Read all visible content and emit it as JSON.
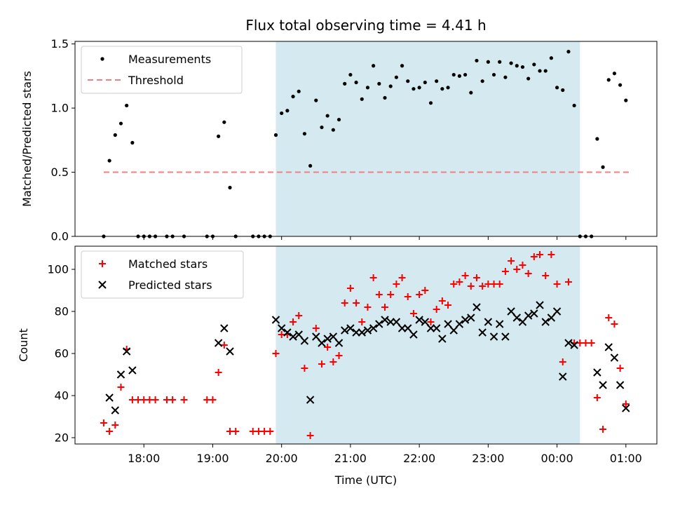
{
  "title": "Flux total observing time = 4.41 h",
  "colors": {
    "shade": "#d4eaf0",
    "measurement": "#000000",
    "threshold": "#f08080",
    "matched": "#ff0000",
    "predicted": "#000000"
  },
  "chart_data": [
    {
      "type": "scatter",
      "ylabel": "Matched/Predicted stars",
      "xlabel": "",
      "x_unit": "hours (UTC, continuing past midnight)",
      "xlim": [
        "17:00",
        "01:27"
      ],
      "ylim": [
        0,
        1.52
      ],
      "yticks": [
        "0.0",
        "0.5",
        "1.0",
        "1.5"
      ],
      "shaded_interval": [
        "19:55",
        "00:20"
      ],
      "legend": {
        "position": "upper-left",
        "entries": [
          "Measurements",
          "Threshold"
        ]
      },
      "series": [
        {
          "name": "Measurements",
          "marker": "dot",
          "points": [
            [
              "17:25",
              0
            ],
            [
              "17:30",
              0.59
            ],
            [
              "17:35",
              0.79
            ],
            [
              "17:40",
              0.88
            ],
            [
              "17:45",
              1.02
            ],
            [
              "17:50",
              0.73
            ],
            [
              "17:55",
              0
            ],
            [
              "18:00",
              0
            ],
            [
              "18:05",
              0
            ],
            [
              "18:10",
              0
            ],
            [
              "18:20",
              0
            ],
            [
              "18:25",
              0
            ],
            [
              "18:35",
              0
            ],
            [
              "18:55",
              0
            ],
            [
              "19:00",
              0
            ],
            [
              "19:05",
              0.78
            ],
            [
              "19:10",
              0.89
            ],
            [
              "19:15",
              0.38
            ],
            [
              "19:20",
              0
            ],
            [
              "19:35",
              0
            ],
            [
              "19:40",
              0
            ],
            [
              "19:45",
              0
            ],
            [
              "19:50",
              0
            ],
            [
              "19:55",
              0.79
            ],
            [
              "20:00",
              0.96
            ],
            [
              "20:05",
              0.98
            ],
            [
              "20:10",
              1.09
            ],
            [
              "20:15",
              1.13
            ],
            [
              "20:20",
              0.8
            ],
            [
              "20:25",
              0.55
            ],
            [
              "20:30",
              1.06
            ],
            [
              "20:35",
              0.85
            ],
            [
              "20:40",
              0.94
            ],
            [
              "20:45",
              0.83
            ],
            [
              "20:50",
              0.91
            ],
            [
              "20:55",
              1.19
            ],
            [
              "21:00",
              1.26
            ],
            [
              "21:05",
              1.2
            ],
            [
              "21:10",
              1.07
            ],
            [
              "21:15",
              1.16
            ],
            [
              "21:20",
              1.33
            ],
            [
              "21:25",
              1.19
            ],
            [
              "21:30",
              1.08
            ],
            [
              "21:35",
              1.17
            ],
            [
              "21:40",
              1.24
            ],
            [
              "21:45",
              1.33
            ],
            [
              "21:50",
              1.21
            ],
            [
              "21:55",
              1.15
            ],
            [
              "22:00",
              1.16
            ],
            [
              "22:05",
              1.2
            ],
            [
              "22:10",
              1.04
            ],
            [
              "22:15",
              1.21
            ],
            [
              "22:20",
              1.15
            ],
            [
              "22:25",
              1.16
            ],
            [
              "22:30",
              1.26
            ],
            [
              "22:35",
              1.25
            ],
            [
              "22:40",
              1.26
            ],
            [
              "22:45",
              1.12
            ],
            [
              "22:50",
              1.37
            ],
            [
              "22:55",
              1.21
            ],
            [
              "23:00",
              1.36
            ],
            [
              "23:05",
              1.26
            ],
            [
              "23:10",
              1.36
            ],
            [
              "23:15",
              1.24
            ],
            [
              "23:20",
              1.35
            ],
            [
              "23:25",
              1.33
            ],
            [
              "23:30",
              1.32
            ],
            [
              "23:35",
              1.23
            ],
            [
              "23:40",
              1.34
            ],
            [
              "23:45",
              1.29
            ],
            [
              "23:50",
              1.29
            ],
            [
              "23:55",
              1.39
            ],
            [
              "00:00",
              1.16
            ],
            [
              "00:05",
              1.14
            ],
            [
              "00:10",
              1.44
            ],
            [
              "00:15",
              1.02
            ],
            [
              "00:20",
              0
            ],
            [
              "00:25",
              0
            ],
            [
              "00:30",
              0
            ],
            [
              "00:35",
              0.76
            ],
            [
              "00:40",
              0.54
            ],
            [
              "00:45",
              1.22
            ],
            [
              "00:50",
              1.27
            ],
            [
              "00:55",
              1.18
            ],
            [
              "01:00",
              1.06
            ]
          ]
        },
        {
          "name": "Threshold",
          "style": "dashed",
          "points": [
            [
              "17:25",
              0.5
            ],
            [
              "01:05",
              0.5
            ]
          ]
        }
      ]
    },
    {
      "type": "scatter",
      "ylabel": "Count",
      "xlabel": "Time (UTC)",
      "xlim": [
        "17:00",
        "01:27"
      ],
      "ylim": [
        17,
        111
      ],
      "yticks": [
        "20",
        "40",
        "60",
        "80",
        "100"
      ],
      "xticks": [
        "18:00",
        "19:00",
        "20:00",
        "21:00",
        "22:00",
        "23:00",
        "00:00",
        "01:00"
      ],
      "shaded_interval": [
        "19:55",
        "00:20"
      ],
      "legend": {
        "position": "upper-left",
        "entries": [
          "Matched stars",
          "Predicted stars"
        ]
      },
      "series": [
        {
          "name": "Matched stars",
          "marker": "plus",
          "points": [
            [
              "17:25",
              27
            ],
            [
              "17:30",
              23
            ],
            [
              "17:35",
              26
            ],
            [
              "17:40",
              44
            ],
            [
              "17:45",
              62
            ],
            [
              "17:50",
              38
            ],
            [
              "17:55",
              38
            ],
            [
              "18:00",
              38
            ],
            [
              "18:05",
              38
            ],
            [
              "18:10",
              38
            ],
            [
              "18:20",
              38
            ],
            [
              "18:25",
              38
            ],
            [
              "18:35",
              38
            ],
            [
              "18:55",
              38
            ],
            [
              "19:00",
              38
            ],
            [
              "19:05",
              51
            ],
            [
              "19:10",
              64
            ],
            [
              "19:15",
              23
            ],
            [
              "19:20",
              23
            ],
            [
              "19:35",
              23
            ],
            [
              "19:40",
              23
            ],
            [
              "19:45",
              23
            ],
            [
              "19:50",
              23
            ],
            [
              "19:55",
              60
            ],
            [
              "20:00",
              69
            ],
            [
              "20:05",
              69
            ],
            [
              "20:10",
              75
            ],
            [
              "20:15",
              78
            ],
            [
              "20:20",
              53
            ],
            [
              "20:25",
              21
            ],
            [
              "20:30",
              72
            ],
            [
              "20:35",
              55
            ],
            [
              "20:40",
              63
            ],
            [
              "20:45",
              56
            ],
            [
              "20:50",
              59
            ],
            [
              "20:55",
              84
            ],
            [
              "21:00",
              91
            ],
            [
              "21:05",
              84
            ],
            [
              "21:10",
              75
            ],
            [
              "21:15",
              82
            ],
            [
              "21:20",
              96
            ],
            [
              "21:25",
              88
            ],
            [
              "21:30",
              82
            ],
            [
              "21:35",
              88
            ],
            [
              "21:40",
              93
            ],
            [
              "21:45",
              96
            ],
            [
              "21:50",
              87
            ],
            [
              "21:55",
              79
            ],
            [
              "22:00",
              88
            ],
            [
              "22:05",
              90
            ],
            [
              "22:10",
              75
            ],
            [
              "22:15",
              81
            ],
            [
              "22:20",
              85
            ],
            [
              "22:25",
              83
            ],
            [
              "22:30",
              93
            ],
            [
              "22:35",
              94
            ],
            [
              "22:40",
              97
            ],
            [
              "22:45",
              92
            ],
            [
              "22:50",
              96
            ],
            [
              "22:55",
              92
            ],
            [
              "23:00",
              93
            ],
            [
              "23:05",
              93
            ],
            [
              "23:10",
              93
            ],
            [
              "23:15",
              99
            ],
            [
              "23:20",
              104
            ],
            [
              "23:25",
              100
            ],
            [
              "23:30",
              102
            ],
            [
              "23:35",
              98
            ],
            [
              "23:40",
              106
            ],
            [
              "23:45",
              107
            ],
            [
              "23:50",
              97
            ],
            [
              "23:55",
              107
            ],
            [
              "00:00",
              93
            ],
            [
              "00:05",
              56
            ],
            [
              "00:10",
              94
            ],
            [
              "00:15",
              65
            ],
            [
              "00:20",
              65
            ],
            [
              "00:25",
              65
            ],
            [
              "00:30",
              65
            ],
            [
              "00:35",
              39
            ],
            [
              "00:40",
              24
            ],
            [
              "00:45",
              77
            ],
            [
              "00:50",
              74
            ],
            [
              "00:55",
              53
            ],
            [
              "01:00",
              36
            ]
          ]
        },
        {
          "name": "Predicted stars",
          "marker": "x",
          "points": [
            [
              "17:30",
              39
            ],
            [
              "17:35",
              33
            ],
            [
              "17:40",
              50
            ],
            [
              "17:45",
              61
            ],
            [
              "17:50",
              52
            ],
            [
              "19:05",
              65
            ],
            [
              "19:10",
              72
            ],
            [
              "19:15",
              61
            ],
            [
              "19:55",
              76
            ],
            [
              "20:00",
              72
            ],
            [
              "20:05",
              70
            ],
            [
              "20:10",
              68
            ],
            [
              "20:15",
              69
            ],
            [
              "20:20",
              66
            ],
            [
              "20:25",
              38
            ],
            [
              "20:30",
              68
            ],
            [
              "20:35",
              65
            ],
            [
              "20:40",
              67
            ],
            [
              "20:45",
              68
            ],
            [
              "20:50",
              65
            ],
            [
              "20:55",
              71
            ],
            [
              "21:00",
              72
            ],
            [
              "21:05",
              70
            ],
            [
              "21:10",
              70
            ],
            [
              "21:15",
              71
            ],
            [
              "21:20",
              72
            ],
            [
              "21:25",
              74
            ],
            [
              "21:30",
              76
            ],
            [
              "21:35",
              75
            ],
            [
              "21:40",
              75
            ],
            [
              "21:45",
              72
            ],
            [
              "21:50",
              72
            ],
            [
              "21:55",
              69
            ],
            [
              "22:00",
              76
            ],
            [
              "22:05",
              75
            ],
            [
              "22:10",
              72
            ],
            [
              "22:15",
              72
            ],
            [
              "22:20",
              67
            ],
            [
              "22:25",
              74
            ],
            [
              "22:30",
              71
            ],
            [
              "22:35",
              74
            ],
            [
              "22:40",
              76
            ],
            [
              "22:45",
              77
            ],
            [
              "22:50",
              82
            ],
            [
              "22:55",
              70
            ],
            [
              "23:00",
              75
            ],
            [
              "23:05",
              68
            ],
            [
              "23:10",
              74
            ],
            [
              "23:15",
              68
            ],
            [
              "23:20",
              80
            ],
            [
              "23:25",
              77
            ],
            [
              "23:30",
              75
            ],
            [
              "23:35",
              78
            ],
            [
              "23:40",
              79
            ],
            [
              "23:45",
              83
            ],
            [
              "23:50",
              75
            ],
            [
              "23:55",
              77
            ],
            [
              "00:00",
              80
            ],
            [
              "00:05",
              49
            ],
            [
              "00:10",
              65
            ],
            [
              "00:15",
              64
            ],
            [
              "00:35",
              51
            ],
            [
              "00:40",
              45
            ],
            [
              "00:45",
              63
            ],
            [
              "00:50",
              58
            ],
            [
              "00:55",
              45
            ],
            [
              "01:00",
              34
            ]
          ]
        }
      ]
    }
  ]
}
